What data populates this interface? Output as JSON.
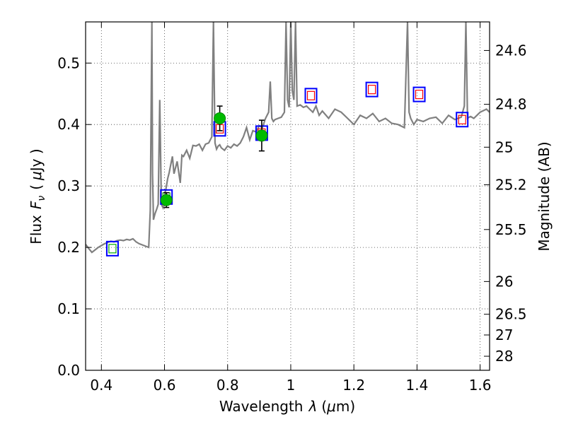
{
  "chart_data": {
    "type": "scatter",
    "xlabel_prefix": "Wavelength",
    "xlabel_var": "λ",
    "xlabel_unit_open": "(",
    "xlabel_unit_mu": "μ",
    "xlabel_unit_rest": "m)",
    "ylabel_prefix": "Flux",
    "ylabel_var": "F",
    "ylabel_sub": "ν",
    "ylabel_unit_open": "(",
    "ylabel_unit_mu": "μ",
    "ylabel_unit_rest": "Jy )",
    "y2label": "Magnitude (AB)",
    "xlim": [
      0.35,
      1.63
    ],
    "ylim": [
      0.0,
      0.567
    ],
    "x_ticks": [
      0.4,
      0.6,
      0.8,
      1.0,
      1.2,
      1.4,
      1.6
    ],
    "x_tick_labels": [
      "0.4",
      "0.6",
      "0.8",
      "1",
      "1.2",
      "1.4",
      "1.6"
    ],
    "y_ticks": [
      0.0,
      0.1,
      0.2,
      0.3,
      0.4,
      0.5
    ],
    "y_tick_labels": [
      "0.0",
      "0.1",
      "0.2",
      "0.3",
      "0.4",
      "0.5"
    ],
    "y2_ticks": [
      {
        "label": "24.6",
        "flux": 0.5205
      },
      {
        "label": "24.8",
        "flux": 0.4329
      },
      {
        "label": "25",
        "flux": 0.3631
      },
      {
        "label": "25.2",
        "flux": 0.302
      },
      {
        "label": "25.5",
        "flux": 0.2291
      },
      {
        "label": "26",
        "flux": 0.1445
      },
      {
        "label": "26.5",
        "flux": 0.0912
      },
      {
        "label": "27",
        "flux": 0.0575
      },
      {
        "label": "28",
        "flux": 0.0229
      }
    ],
    "grid": true,
    "series": [
      {
        "kind": "model-spectrum",
        "x": [
          0.35,
          0.36,
          0.37,
          0.38,
          0.39,
          0.4,
          0.41,
          0.42,
          0.43,
          0.44,
          0.45,
          0.46,
          0.47,
          0.48,
          0.49,
          0.5,
          0.51,
          0.52,
          0.53,
          0.54,
          0.55,
          0.555,
          0.558,
          0.56,
          0.562,
          0.565,
          0.57,
          0.575,
          0.58,
          0.585,
          0.59,
          0.595,
          0.6,
          0.605,
          0.61,
          0.615,
          0.62,
          0.625,
          0.63,
          0.64,
          0.65,
          0.655,
          0.66,
          0.67,
          0.68,
          0.69,
          0.7,
          0.71,
          0.72,
          0.73,
          0.74,
          0.75,
          0.755,
          0.76,
          0.765,
          0.77,
          0.775,
          0.78,
          0.79,
          0.8,
          0.81,
          0.82,
          0.83,
          0.84,
          0.85,
          0.86,
          0.87,
          0.88,
          0.89,
          0.9,
          0.91,
          0.92,
          0.93,
          0.935,
          0.94,
          0.945,
          0.95,
          0.96,
          0.97,
          0.98,
          0.985,
          0.99,
          0.995,
          1.0,
          1.005,
          1.01,
          1.015,
          1.02,
          1.03,
          1.04,
          1.05,
          1.06,
          1.07,
          1.08,
          1.09,
          1.1,
          1.12,
          1.14,
          1.16,
          1.18,
          1.2,
          1.22,
          1.24,
          1.26,
          1.28,
          1.3,
          1.32,
          1.34,
          1.36,
          1.37,
          1.375,
          1.38,
          1.39,
          1.4,
          1.42,
          1.44,
          1.46,
          1.48,
          1.5,
          1.52,
          1.54,
          1.55,
          1.555,
          1.56,
          1.565,
          1.57,
          1.58,
          1.6,
          1.62,
          1.63
        ],
        "y": [
          0.205,
          0.198,
          0.192,
          0.196,
          0.2,
          0.203,
          0.206,
          0.208,
          0.21,
          0.209,
          0.211,
          0.212,
          0.211,
          0.213,
          0.212,
          0.214,
          0.209,
          0.206,
          0.204,
          0.202,
          0.2,
          0.26,
          0.45,
          0.567,
          0.32,
          0.245,
          0.255,
          0.262,
          0.27,
          0.44,
          0.27,
          0.265,
          0.282,
          0.297,
          0.312,
          0.322,
          0.335,
          0.348,
          0.32,
          0.34,
          0.305,
          0.35,
          0.348,
          0.358,
          0.345,
          0.366,
          0.365,
          0.368,
          0.358,
          0.368,
          0.37,
          0.38,
          0.567,
          0.37,
          0.36,
          0.365,
          0.367,
          0.362,
          0.358,
          0.365,
          0.362,
          0.368,
          0.365,
          0.37,
          0.38,
          0.395,
          0.375,
          0.39,
          0.388,
          0.398,
          0.395,
          0.41,
          0.42,
          0.47,
          0.41,
          0.405,
          0.408,
          0.41,
          0.412,
          0.42,
          0.567,
          0.44,
          0.428,
          0.567,
          0.455,
          0.44,
          0.567,
          0.43,
          0.432,
          0.428,
          0.43,
          0.425,
          0.42,
          0.43,
          0.415,
          0.422,
          0.41,
          0.425,
          0.42,
          0.41,
          0.4,
          0.415,
          0.41,
          0.418,
          0.405,
          0.41,
          0.402,
          0.4,
          0.395,
          0.567,
          0.42,
          0.41,
          0.4,
          0.408,
          0.405,
          0.41,
          0.412,
          0.402,
          0.415,
          0.408,
          0.412,
          0.43,
          0.567,
          0.41,
          0.412,
          0.413,
          0.41,
          0.42,
          0.425,
          0.42
        ]
      },
      {
        "kind": "model-photometry",
        "x": [
          0.435,
          0.606,
          0.775,
          0.908,
          1.064,
          1.257,
          1.407,
          1.543
        ],
        "y": [
          0.198,
          0.282,
          0.393,
          0.386,
          0.447,
          0.457,
          0.449,
          0.408
        ]
      },
      {
        "kind": "observed-photometry",
        "x": [
          0.606,
          0.775,
          0.908
        ],
        "y": [
          0.277,
          0.41,
          0.382
        ],
        "yerr": [
          0.012,
          0.02,
          0.025
        ]
      }
    ]
  }
}
